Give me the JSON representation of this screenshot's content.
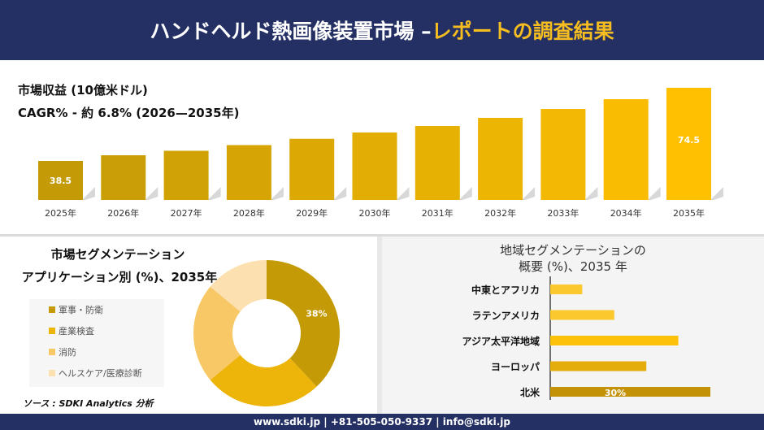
{
  "header": {
    "title_main": "ハンドヘルド熱画像装置市場 –",
    "title_highlight": "レポートの調査結果"
  },
  "colors": {
    "navy": "#243064",
    "accent": "#f5bd1f"
  },
  "chart_data": [
    {
      "type": "bar",
      "title": "市場収益 (10億米ドル)",
      "subtitle": "CAGR% - 約 6.8% (2026—2035年)",
      "categories": [
        "2025年",
        "2026年",
        "2027年",
        "2028年",
        "2029年",
        "2030年",
        "2031年",
        "2032年",
        "2033年",
        "2034年",
        "2035年"
      ],
      "values": [
        38.5,
        41.3,
        43.5,
        46.3,
        49.4,
        52.5,
        55.7,
        59.7,
        64.1,
        68.9,
        74.5
      ],
      "data_labels": {
        "0": "38.5",
        "10": "74.5"
      },
      "grid": false
    },
    {
      "type": "pie",
      "title": "市場セグメンテーション",
      "subtitle": "アプリケーション別 (%)、2035年",
      "labels": [
        "軍事・防衛",
        "産業検査",
        "消防",
        "ヘルスケア/医療診断"
      ],
      "values": [
        38,
        26,
        22,
        14
      ],
      "colors": [
        "#c49a06",
        "#edb50a",
        "#f8c867",
        "#fde0b0"
      ],
      "data_labels": {
        "0": "38%"
      },
      "legend": "left"
    },
    {
      "type": "bar",
      "orientation": "horizontal",
      "title": "地域セグメンテーションの",
      "subtitle": "概要 (%)、2035 年",
      "categories": [
        "中東とアフリカ",
        "ラテンアメリカ",
        "アジア太平洋地域",
        "ヨーロッパ",
        "北米"
      ],
      "values": [
        6,
        12,
        24,
        18,
        30
      ],
      "colors": [
        "#fbc82e",
        "#fbc82e",
        "#fdc10a",
        "#e4ad0b",
        "#c49206"
      ],
      "data_labels": {
        "4": "30%"
      }
    }
  ],
  "source": "ソース : SDKI Analytics 分析",
  "footer": "www.sdki.jp | +81-505-050-9337 | info@sdki.jp"
}
